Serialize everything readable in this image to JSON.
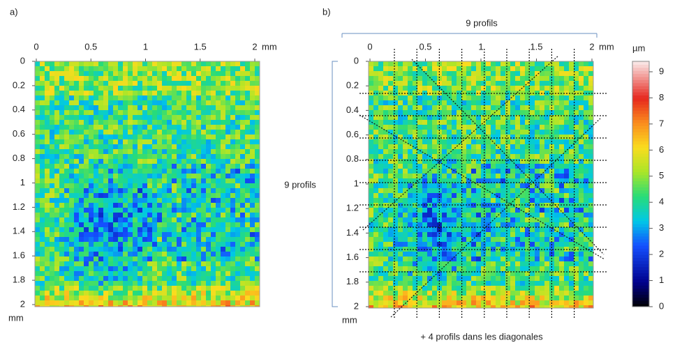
{
  "panels": [
    {
      "label": "a)",
      "x_ticks": [
        0,
        0.5,
        1,
        1.5,
        2
      ],
      "x_unit": "mm",
      "y_ticks": [
        0,
        0.2,
        0.4,
        0.6,
        0.8,
        1,
        1.2,
        1.4,
        1.6,
        1.8,
        2
      ],
      "y_unit": "mm"
    },
    {
      "label": "b)",
      "x_ticks": [
        0,
        0.5,
        1,
        1.5,
        2
      ],
      "x_unit": "mm",
      "y_ticks": [
        0,
        0.2,
        0.4,
        0.6,
        0.8,
        1,
        1.2,
        1.4,
        1.6,
        1.8,
        2
      ],
      "y_unit": "mm"
    }
  ],
  "colorbar": {
    "unit": "µm",
    "ticks": [
      0,
      1,
      2,
      3,
      4,
      5,
      6,
      7,
      8,
      9
    ]
  },
  "annotations": {
    "top": "9 profils",
    "left": "9 profils",
    "bottom": "+ 4 profils dans les diagonales"
  }
}
